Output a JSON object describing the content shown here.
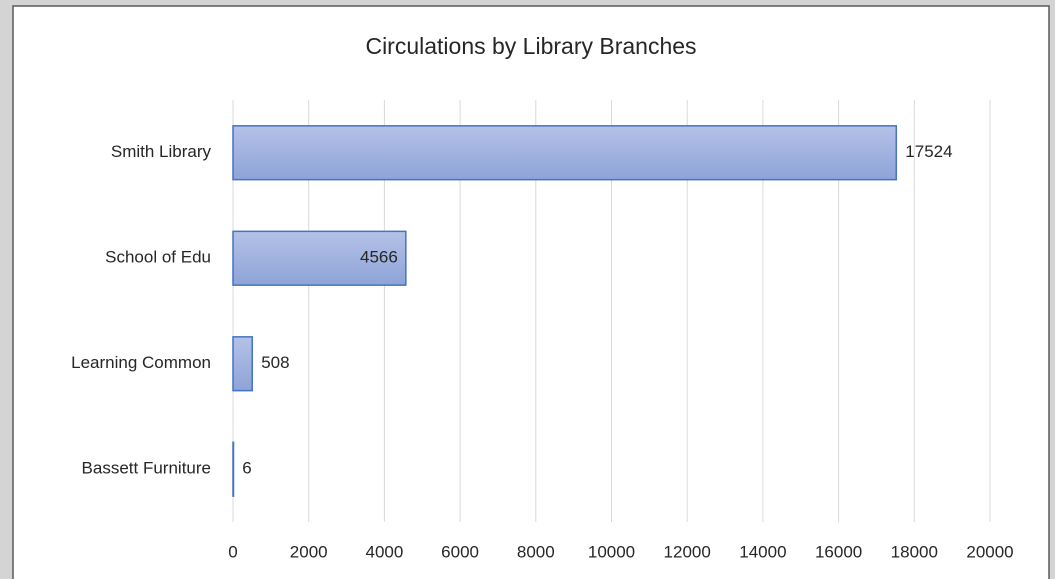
{
  "chart_data": {
    "type": "bar",
    "orientation": "horizontal",
    "title": "Circulations  by Library  Branches",
    "categories": [
      "Smith Library",
      "School of Edu",
      "Learning Common",
      "Bassett Furniture"
    ],
    "values": [
      17524,
      4566,
      508,
      6
    ],
    "data_label_position": [
      "outside_end",
      "inside_end",
      "outside_end",
      "outside_end"
    ],
    "color": "#9fb2e0",
    "edge_color": "#4472c4",
    "xlim": [
      0,
      20000
    ],
    "xticks": [
      0,
      2000,
      4000,
      6000,
      8000,
      10000,
      12000,
      14000,
      16000,
      18000,
      20000
    ],
    "grid": true
  }
}
